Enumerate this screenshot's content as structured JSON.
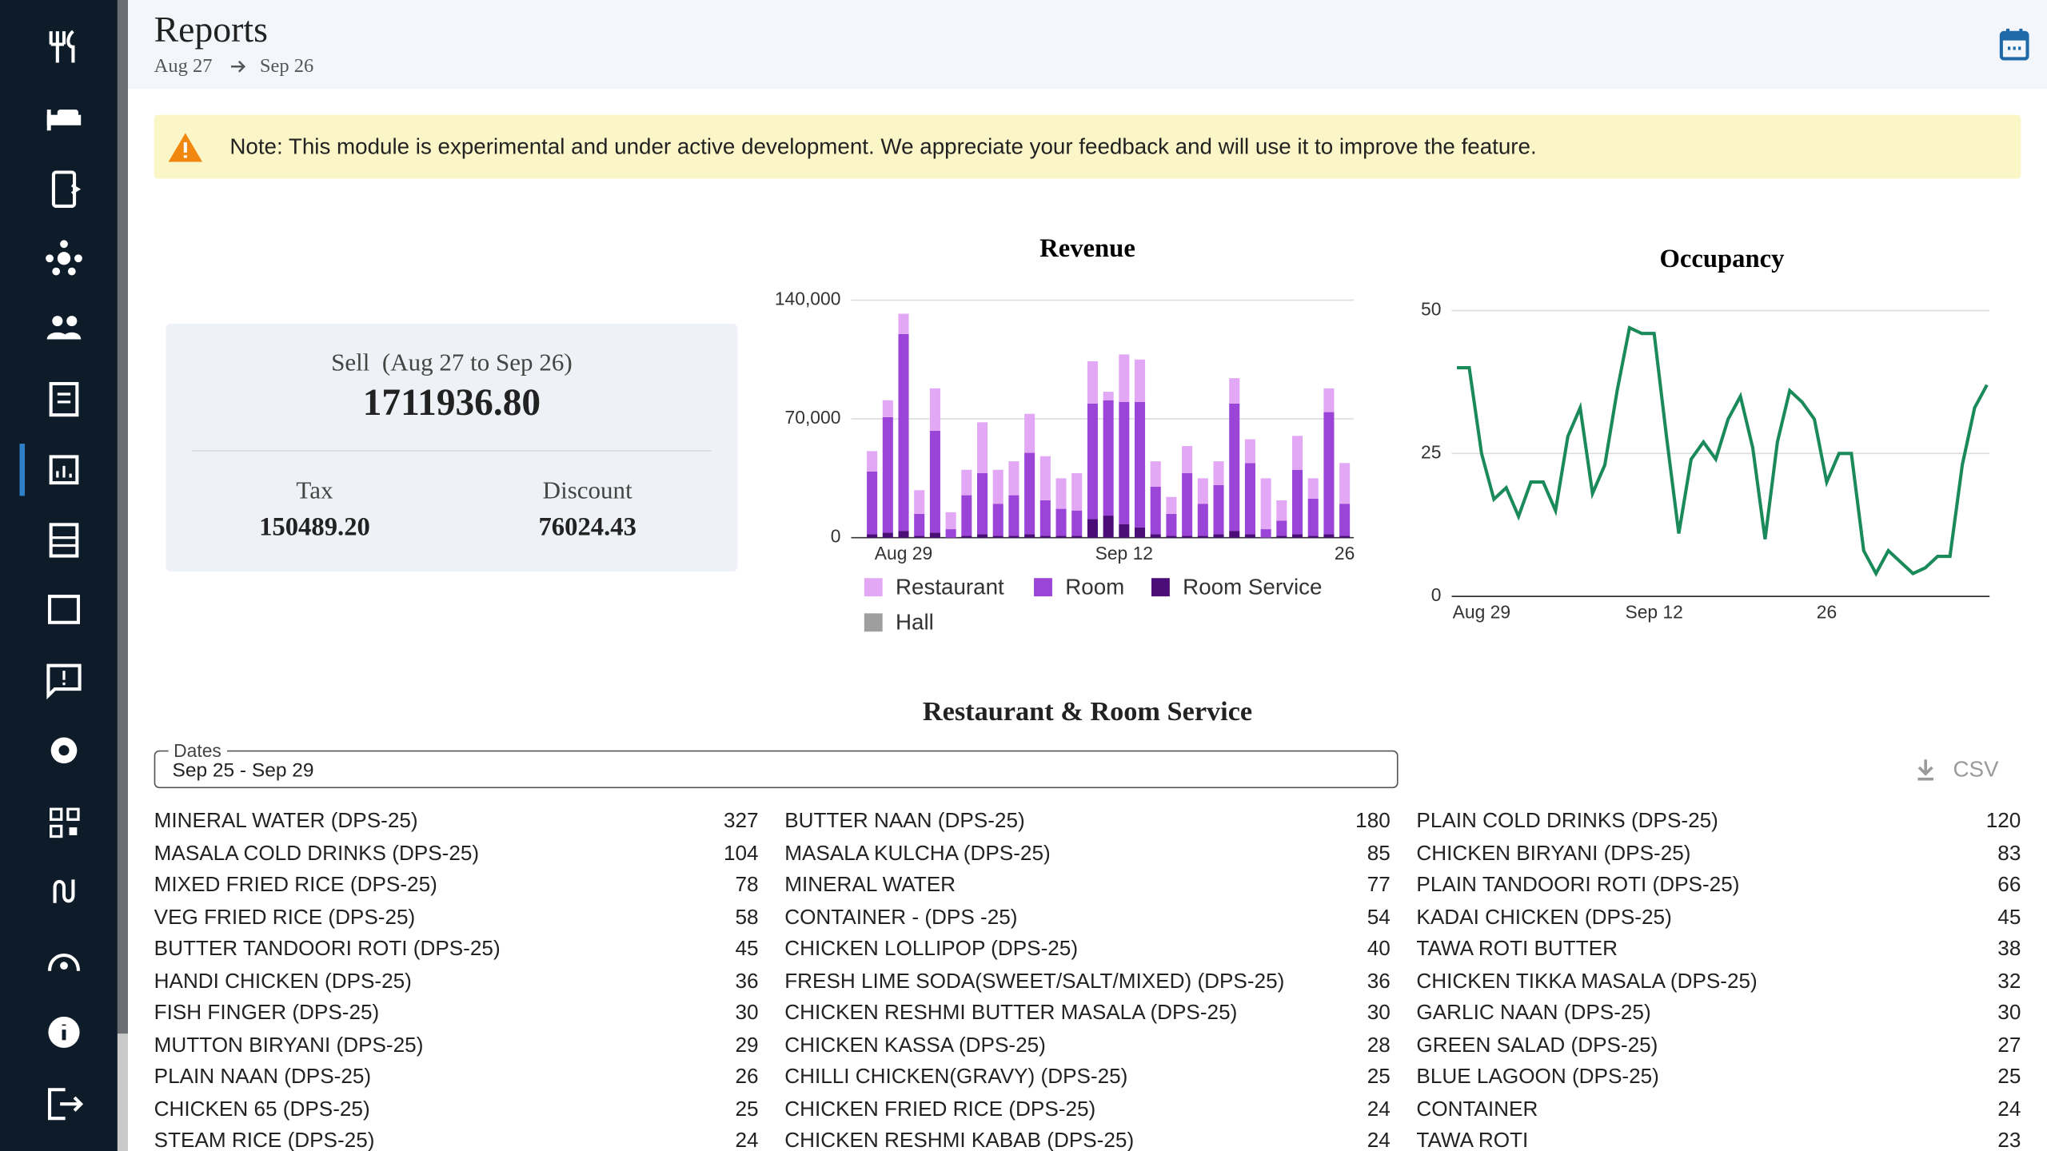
{
  "header": {
    "title": "Reports",
    "date_from": "Aug 27",
    "date_to": "Sep 26"
  },
  "note": "Note: This module is experimental and under active development. We appreciate your feedback and will use it to improve the feature.",
  "summary": {
    "sell_label": "Sell  (Aug 27 to Sep 26)",
    "sell": "1711936.80",
    "tax_label": "Tax",
    "tax": "150489.20",
    "discount_label": "Discount",
    "discount": "76024.43"
  },
  "chart_data": [
    {
      "type": "bar",
      "stacked": true,
      "title": "Revenue",
      "categories": [
        null,
        null,
        "Aug 29",
        null,
        null,
        null,
        null,
        null,
        null,
        null,
        null,
        null,
        null,
        null,
        null,
        null,
        "Sep 12",
        null,
        null,
        null,
        null,
        null,
        null,
        null,
        null,
        null,
        null,
        null,
        null,
        null,
        "26"
      ],
      "series": [
        {
          "name": "Restaurant",
          "color": "#e2a8f5",
          "values": [
            12000,
            10000,
            12000,
            14000,
            25000,
            10000,
            15000,
            30000,
            20000,
            20000,
            23000,
            26000,
            18000,
            22000,
            25000,
            5000,
            28000,
            25000,
            15000,
            10000,
            16000,
            15000,
            14000,
            15000,
            14000,
            30000,
            12000,
            20000,
            12000,
            14000,
            24000
          ]
        },
        {
          "name": "Room",
          "color": "#9b45d8",
          "values": [
            37000,
            68000,
            116000,
            13000,
            60000,
            5000,
            24000,
            36000,
            19000,
            24000,
            48000,
            21000,
            16000,
            15000,
            68000,
            68000,
            72000,
            74000,
            28000,
            13000,
            37000,
            19000,
            29000,
            75000,
            42000,
            5000,
            9000,
            38000,
            22000,
            72000,
            19000
          ]
        },
        {
          "name": "Room Service",
          "color": "#4b0d78",
          "values": [
            2000,
            3000,
            4000,
            1000,
            3000,
            0,
            1000,
            2000,
            1000,
            1000,
            2000,
            1000,
            1000,
            1000,
            11000,
            13000,
            8000,
            6000,
            2000,
            1000,
            1000,
            1000,
            2000,
            4000,
            2000,
            0,
            1000,
            2000,
            1000,
            2000,
            1000
          ]
        },
        {
          "name": "Hall",
          "color": "#9e9e9e",
          "values": [
            0,
            0,
            0,
            0,
            0,
            0,
            0,
            0,
            0,
            0,
            0,
            0,
            0,
            0,
            0,
            0,
            0,
            0,
            0,
            0,
            0,
            0,
            0,
            0,
            0,
            0,
            0,
            0,
            0,
            0,
            0
          ]
        }
      ],
      "ylim": [
        0,
        140000
      ],
      "yticks": [
        0,
        {
          "value": 70000,
          "label": "70,000"
        },
        {
          "value": 140000,
          "label": "140,000"
        }
      ],
      "grid": true
    },
    {
      "type": "line",
      "title": "Occupancy",
      "categories": [
        null,
        null,
        "Aug 29",
        null,
        null,
        null,
        null,
        null,
        null,
        null,
        null,
        null,
        null,
        null,
        null,
        null,
        "Sep 12",
        null,
        null,
        null,
        null,
        null,
        null,
        null,
        null,
        null,
        null,
        null,
        null,
        null,
        "26",
        null,
        null,
        null,
        null,
        null,
        null,
        null,
        null,
        null,
        null,
        null,
        null,
        null
      ],
      "color": "#1b8a5a",
      "values": [
        40,
        40,
        25,
        17,
        19,
        14,
        20,
        20,
        15,
        28,
        33,
        18,
        23,
        36,
        47,
        46,
        46,
        28,
        11,
        24,
        27,
        24,
        31,
        35,
        26,
        10,
        27,
        36,
        34,
        31,
        20,
        25,
        25,
        8,
        4,
        8,
        6,
        4,
        5,
        7,
        7,
        23,
        33,
        37
      ],
      "ylim": [
        0,
        50
      ],
      "yticks": [
        0,
        25,
        50
      ],
      "grid": true
    }
  ],
  "section_title": "Restaurant & Room Service",
  "filter": {
    "label": "Dates",
    "value": "Sep 25 - Sep 29"
  },
  "csv_label": "CSV",
  "items": [
    [
      [
        "MINERAL WATER (DPS-25)",
        "327"
      ],
      [
        "MASALA COLD DRINKS (DPS-25)",
        "104"
      ],
      [
        "MIXED FRIED RICE (DPS-25)",
        "78"
      ],
      [
        "VEG FRIED RICE (DPS-25)",
        "58"
      ],
      [
        "BUTTER TANDOORI ROTI (DPS-25)",
        "45"
      ],
      [
        "HANDI CHICKEN (DPS-25)",
        "36"
      ],
      [
        "FISH FINGER (DPS-25)",
        "30"
      ],
      [
        "MUTTON BIRYANI (DPS-25)",
        "29"
      ],
      [
        "PLAIN NAAN (DPS-25)",
        "26"
      ],
      [
        "CHICKEN 65 (DPS-25)",
        "25"
      ],
      [
        "STEAM RICE (DPS-25)",
        "24"
      ]
    ],
    [
      [
        "BUTTER NAAN (DPS-25)",
        "180"
      ],
      [
        "MASALA KULCHA (DPS-25)",
        "85"
      ],
      [
        "MINERAL WATER",
        "77"
      ],
      [
        "CONTAINER - (DPS -25)",
        "54"
      ],
      [
        "CHICKEN LOLLIPOP (DPS-25)",
        "40"
      ],
      [
        "FRESH LIME SODA(SWEET/SALT/MIXED) (DPS-25)",
        "36"
      ],
      [
        "CHICKEN RESHMI BUTTER MASALA (DPS-25)",
        "30"
      ],
      [
        "CHICKEN KASSA (DPS-25)",
        "28"
      ],
      [
        "CHILLI CHICKEN(GRAVY) (DPS-25)",
        "25"
      ],
      [
        "CHICKEN FRIED RICE (DPS-25)",
        "24"
      ],
      [
        "CHICKEN RESHMI KABAB (DPS-25)",
        "24"
      ]
    ],
    [
      [
        "PLAIN COLD DRINKS (DPS-25)",
        "120"
      ],
      [
        "CHICKEN BIRYANI (DPS-25)",
        "83"
      ],
      [
        "PLAIN TANDOORI ROTI (DPS-25)",
        "66"
      ],
      [
        "KADAI CHICKEN (DPS-25)",
        "45"
      ],
      [
        "TAWA ROTI BUTTER",
        "38"
      ],
      [
        "CHICKEN TIKKA MASALA (DPS-25)",
        "32"
      ],
      [
        "GARLIC NAAN (DPS-25)",
        "30"
      ],
      [
        "GREEN SALAD (DPS-25)",
        "27"
      ],
      [
        "BLUE LAGOON (DPS-25)",
        "25"
      ],
      [
        "CONTAINER",
        "24"
      ],
      [
        "TAWA ROTI",
        "23"
      ]
    ]
  ]
}
